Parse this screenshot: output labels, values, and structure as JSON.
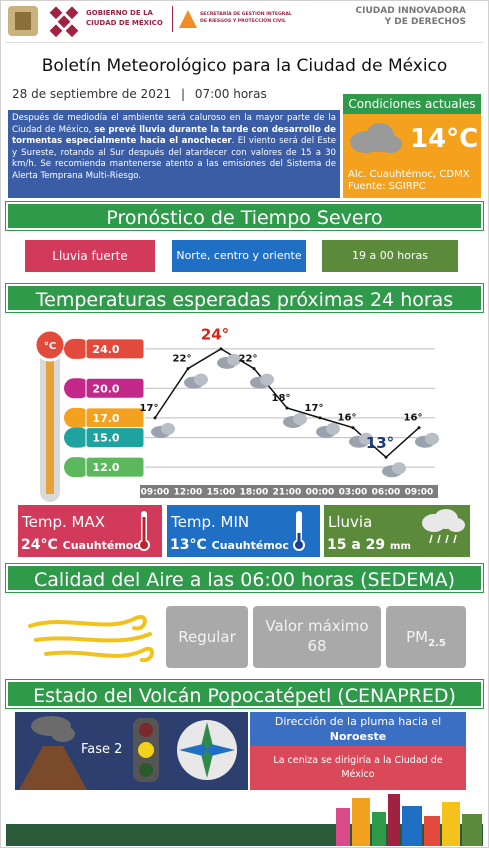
{
  "header": {
    "gov_line1": "GOBIERNO DE LA",
    "gov_line2": "CIUDAD DE MÉXICO",
    "secretaria_line1": "SECRETARÍA DE GESTIÓN INTEGRAL",
    "secretaria_line2": "DE RIESGOS Y PROTECCIÓN CIVIL",
    "slogan_line1": "CIUDAD INNOVADORA",
    "slogan_line2": "Y DE DERECHOS"
  },
  "title": "Boletín Meteorológico para la Ciudad de México",
  "date": "28 de septiembre de 2021",
  "separator": "|",
  "time": "07:00 horas",
  "summary": {
    "part1": "Después de mediodía el ambiente será caluroso en la mayor parte de la Ciudad de México, ",
    "bold": "se prevé lluvia durante la tarde con desarrollo de tormentas especialmente hacia el anochecer",
    "part2": ". El viento será del Este y Sureste, rotando al Sur después del atardecer con valores de 15 a 30 km/h. Se recomienda mantenerse atento a las emisiones del Sistema de Alerta Temprana Multi-Riesgo."
  },
  "current": {
    "heading": "Condiciones actuales",
    "temperature": "14°C",
    "location": "Alc. Cuauhtémoc, CDMX",
    "source": "Fuente: SGIRPC"
  },
  "severe": {
    "heading": "Pronóstico de Tiempo Severo",
    "items": [
      "Lluvia fuerte",
      "Norte, centro y oriente",
      "19 a 00 horas"
    ]
  },
  "temperatures_heading": "Temperaturas esperadas próximas 24 horas",
  "chart_data": {
    "type": "line",
    "categories": [
      "09:00",
      "12:00",
      "15:00",
      "18:00",
      "21:00",
      "00:00",
      "03:00",
      "06:00",
      "09:00"
    ],
    "values": [
      17,
      22,
      24,
      22,
      18,
      17,
      16,
      13,
      16
    ],
    "value_labels": [
      "17°",
      "22°",
      "24°",
      "22°",
      "18°",
      "17°",
      "16°",
      "13°",
      "16°"
    ],
    "color": "#111111",
    "ylim": [
      11,
      25
    ],
    "yticks": [
      {
        "value": 24,
        "label": "24.0"
      },
      {
        "value": 20,
        "label": "20.0"
      },
      {
        "value": 17,
        "label": "17.0"
      },
      {
        "value": 15,
        "label": "15.0"
      },
      {
        "value": 12,
        "label": "12.0"
      }
    ],
    "grid": true,
    "unit_badge": "°C"
  },
  "cards": {
    "max": {
      "label": "Temp. MAX",
      "value": "24°C",
      "place": "Cuauhtémoc"
    },
    "min": {
      "label": "Temp. MIN",
      "value": "13°C",
      "place": "Cuauhtémoc"
    },
    "rain": {
      "label": "Lluvia",
      "value": "15 a 29",
      "unit": "mm"
    }
  },
  "air": {
    "heading": "Calidad del Aire a las 06:00 horas (SEDEMA)",
    "quality": "Regular",
    "max_label": "Valor máximo",
    "max_value": "68",
    "pollutant": "PM",
    "pollutant_sub": "2.5"
  },
  "volcano": {
    "heading": "Estado del Volcán Popocatépetl (CENAPRED)",
    "phase": "Fase 2",
    "plume_label": "Dirección de la pluma hacia el",
    "plume_direction": "Noroeste",
    "ash": "La ceniza se dirigiría a la Ciudad de México"
  }
}
